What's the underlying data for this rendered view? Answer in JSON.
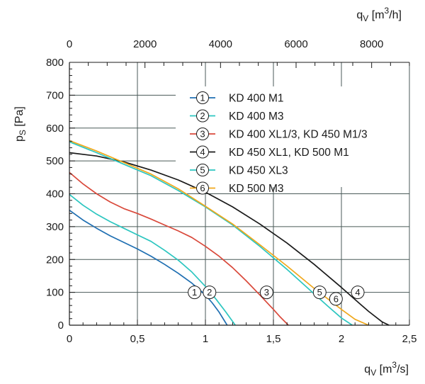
{
  "chart_data": {
    "type": "line",
    "title": "",
    "xlabel": {
      "base": "q",
      "sub": "V",
      "unit_open": " [m",
      "sup": "3",
      "unit_close": "/s]"
    },
    "x2label": {
      "base": "q",
      "sub": "V",
      "unit_open": " [m",
      "sup": "3",
      "unit_close": "/h]"
    },
    "ylabel": {
      "base": "p",
      "sub": "S",
      "unit": " [Pa]"
    },
    "xlim": [
      0,
      2.5
    ],
    "ylim": [
      0,
      800
    ],
    "x2lim": [
      0,
      9000
    ],
    "x_ticks": [
      0,
      0.5,
      1,
      1.5,
      2,
      2.5
    ],
    "x_tick_labels": [
      "0",
      "0,5",
      "1",
      "1,5",
      "2",
      "2,5"
    ],
    "x2_ticks": [
      0,
      2000,
      4000,
      6000,
      8000
    ],
    "x2_tick_labels": [
      "0",
      "2000",
      "4000",
      "6000",
      "8000"
    ],
    "y_ticks": [
      0,
      100,
      200,
      300,
      400,
      500,
      600,
      700,
      800
    ],
    "y_tick_labels": [
      "0",
      "100",
      "200",
      "300",
      "400",
      "500",
      "600",
      "700",
      "800"
    ],
    "grid": true,
    "legend_position": "top-right",
    "series": [
      {
        "marker": "1",
        "name": "KD 400 M1",
        "color": "#1f6fb2",
        "x": [
          0,
          0.1,
          0.2,
          0.3,
          0.4,
          0.5,
          0.6,
          0.7,
          0.8,
          0.9,
          1.0,
          1.05,
          1.1,
          1.16
        ],
        "y": [
          350,
          320,
          295,
          272,
          252,
          232,
          210,
          185,
          158,
          128,
          92,
          68,
          40,
          0
        ],
        "label_at": [
          0.92,
          100
        ]
      },
      {
        "marker": "2",
        "name": "KD 400 M3",
        "color": "#2cc6c0",
        "x": [
          0,
          0.1,
          0.2,
          0.3,
          0.4,
          0.5,
          0.6,
          0.7,
          0.8,
          0.9,
          1.0,
          1.08,
          1.15,
          1.22
        ],
        "y": [
          398,
          365,
          338,
          315,
          295,
          275,
          255,
          228,
          198,
          162,
          118,
          78,
          40,
          0
        ],
        "label_at": [
          1.03,
          100
        ]
      },
      {
        "marker": "3",
        "name": "KD 400 XL1/3, KD 450 M1/3",
        "color": "#d9493b",
        "x": [
          0,
          0.1,
          0.2,
          0.3,
          0.4,
          0.5,
          0.6,
          0.7,
          0.8,
          0.9,
          1.0,
          1.1,
          1.2,
          1.3,
          1.4,
          1.5,
          1.55,
          1.61
        ],
        "y": [
          465,
          430,
          400,
          375,
          355,
          340,
          323,
          305,
          287,
          267,
          240,
          210,
          175,
          135,
          92,
          48,
          25,
          0
        ],
        "label_at": [
          1.45,
          100
        ]
      },
      {
        "marker": "4",
        "name": "KD 450 XL1, KD 500 M1",
        "color": "#1a1a1a",
        "x": [
          0,
          0.2,
          0.4,
          0.6,
          0.8,
          1.0,
          1.2,
          1.4,
          1.6,
          1.8,
          2.0,
          2.1,
          2.2,
          2.3,
          2.35
        ],
        "y": [
          525,
          515,
          497,
          472,
          442,
          405,
          360,
          308,
          250,
          185,
          115,
          78,
          42,
          10,
          0
        ],
        "label_at": [
          2.12,
          100
        ]
      },
      {
        "marker": "5",
        "name": "KD 450 XL3",
        "color": "#2cc6c0",
        "x": [
          0,
          0.2,
          0.4,
          0.6,
          0.8,
          1.0,
          1.2,
          1.4,
          1.6,
          1.8,
          1.9,
          2.0,
          2.08
        ],
        "y": [
          558,
          525,
          490,
          455,
          410,
          360,
          305,
          240,
          170,
          95,
          58,
          22,
          0
        ],
        "label_at": [
          1.84,
          100
        ]
      },
      {
        "marker": "6",
        "name": "KD 500 M3",
        "color": "#f0a81c",
        "x": [
          0,
          0.2,
          0.4,
          0.6,
          0.8,
          1.0,
          1.2,
          1.4,
          1.6,
          1.8,
          2.0,
          2.1,
          2.2
        ],
        "y": [
          562,
          530,
          495,
          460,
          415,
          362,
          308,
          245,
          180,
          112,
          48,
          18,
          0
        ],
        "label_at": [
          1.96,
          80
        ]
      }
    ]
  }
}
